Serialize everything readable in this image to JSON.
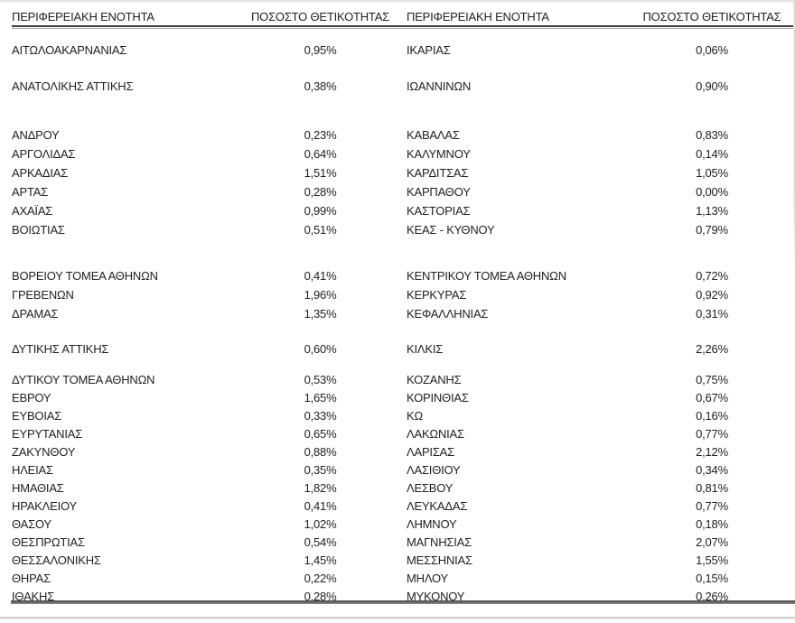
{
  "header": {
    "region_label": "ΠΕΡΙΦΕΡΕΙΑΚΗ ΕΝΟΤΗΤΑ",
    "rate_label": "ΠΟΣΟΣΤΟ ΘΕΤΙΚΟΤΗΤΑΣ"
  },
  "colors": {
    "text": "#212121",
    "header_rule_dark": "#3d3d3d",
    "header_rule_light": "#a9a9a9",
    "bottom_rule": "#5a5a5a",
    "page_edge": "#d9d9d9"
  },
  "tables": [
    {
      "side": "left",
      "groups": [
        [
          {
            "region": "ΑΙΤΩΛΟΑΚΑΡΝΑΝΙΑΣ",
            "rate": "0,95%"
          },
          {
            "region": "ΑΝΑΤΟΛΙΚΗΣ ΑΤΤΙΚΗΣ",
            "rate": "0,38%"
          }
        ],
        [
          {
            "region": "ΑΝΔΡΟΥ",
            "rate": "0,23%"
          },
          {
            "region": "ΑΡΓΟΛΙΔΑΣ",
            "rate": "0,64%"
          },
          {
            "region": "ΑΡΚΑΔΙΑΣ",
            "rate": "1,51%"
          },
          {
            "region": "ΑΡΤΑΣ",
            "rate": "0,28%"
          },
          {
            "region": "ΑΧΑΪΑΣ",
            "rate": "0,99%"
          },
          {
            "region": "ΒΟΙΩΤΙΑΣ",
            "rate": "0,51%"
          }
        ],
        [
          {
            "region": "ΒΟΡΕΙΟΥ ΤΟΜΕΑ ΑΘΗΝΩΝ",
            "rate": "0,41%"
          },
          {
            "region": "ΓΡΕΒΕΝΩΝ",
            "rate": "1,96%"
          },
          {
            "region": "ΔΡΑΜΑΣ",
            "rate": "1,35%"
          }
        ],
        [
          {
            "region": "ΔΥΤΙΚΗΣ ΑΤΤΙΚΗΣ",
            "rate": "0,60%"
          }
        ],
        [
          {
            "region": "ΔΥΤΙΚΟΥ ΤΟΜΕΑ ΑΘΗΝΩΝ",
            "rate": "0,53%"
          },
          {
            "region": "ΕΒΡΟΥ",
            "rate": "1,65%"
          },
          {
            "region": "ΕΥΒΟΙΑΣ",
            "rate": "0,33%"
          },
          {
            "region": "ΕΥΡΥΤΑΝΙΑΣ",
            "rate": "0,65%"
          },
          {
            "region": "ΖΑΚΥΝΘΟΥ",
            "rate": "0,88%"
          },
          {
            "region": "ΗΛΕΙΑΣ",
            "rate": "0,35%"
          },
          {
            "region": "ΗΜΑΘΙΑΣ",
            "rate": "1,82%"
          },
          {
            "region": "ΗΡΑΚΛΕΙΟΥ",
            "rate": "0,41%"
          },
          {
            "region": "ΘΑΣΟΥ",
            "rate": "1,02%"
          },
          {
            "region": "ΘΕΣΠΡΩΤΙΑΣ",
            "rate": "0,54%"
          },
          {
            "region": "ΘΕΣΣΑΛΟΝΙΚΗΣ",
            "rate": "1,45%"
          },
          {
            "region": "ΘΗΡΑΣ",
            "rate": "0,22%"
          },
          {
            "region": "ΙΘΑΚΗΣ",
            "rate": "0,28%"
          }
        ]
      ]
    },
    {
      "side": "right",
      "groups": [
        [
          {
            "region": "ΙΚΑΡΙΑΣ",
            "rate": "0,06%"
          },
          {
            "region": "ΙΩΑΝΝΙΝΩΝ",
            "rate": "0,90%"
          }
        ],
        [
          {
            "region": "ΚΑΒΑΛΑΣ",
            "rate": "0,83%"
          },
          {
            "region": "ΚΑΛΥΜΝΟΥ",
            "rate": "0,14%"
          },
          {
            "region": "ΚΑΡΔΙΤΣΑΣ",
            "rate": "1,05%"
          },
          {
            "region": "ΚΑΡΠΑΘΟΥ",
            "rate": "0,00%"
          },
          {
            "region": "ΚΑΣΤΟΡΙΑΣ",
            "rate": "1,13%"
          },
          {
            "region": "ΚΕΑΣ - ΚΥΘΝΟΥ",
            "rate": "0,79%"
          }
        ],
        [
          {
            "region": "ΚΕΝΤΡΙΚΟΥ ΤΟΜΕΑ ΑΘΗΝΩΝ",
            "rate": "0,72%"
          },
          {
            "region": "ΚΕΡΚΥΡΑΣ",
            "rate": "0,92%"
          },
          {
            "region": "ΚΕΦΑΛΛΗΝΙΑΣ",
            "rate": "0,31%"
          }
        ],
        [
          {
            "region": "ΚΙΛΚΙΣ",
            "rate": "2,26%"
          }
        ],
        [
          {
            "region": "ΚΟΖΑΝΗΣ",
            "rate": "0,75%"
          },
          {
            "region": "ΚΟΡΙΝΘΙΑΣ",
            "rate": "0,67%"
          },
          {
            "region": "ΚΩ",
            "rate": "0,16%"
          },
          {
            "region": "ΛΑΚΩΝΙΑΣ",
            "rate": "0,77%"
          },
          {
            "region": "ΛΑΡΙΣΑΣ",
            "rate": "2,12%"
          },
          {
            "region": "ΛΑΣΙΘΙΟΥ",
            "rate": "0,34%"
          },
          {
            "region": "ΛΕΣΒΟΥ",
            "rate": "0,81%"
          },
          {
            "region": "ΛΕΥΚΑΔΑΣ",
            "rate": "0,77%"
          },
          {
            "region": "ΛΗΜΝΟΥ",
            "rate": "0,18%"
          },
          {
            "region": "ΜΑΓΝΗΣΙΑΣ",
            "rate": "2,07%"
          },
          {
            "region": "ΜΕΣΣΗΝΙΑΣ",
            "rate": "1,55%"
          },
          {
            "region": "ΜΗΛΟΥ",
            "rate": "0,15%"
          },
          {
            "region": "ΜΥΚΟΝΟΥ",
            "rate": "0,26%"
          }
        ]
      ]
    }
  ]
}
